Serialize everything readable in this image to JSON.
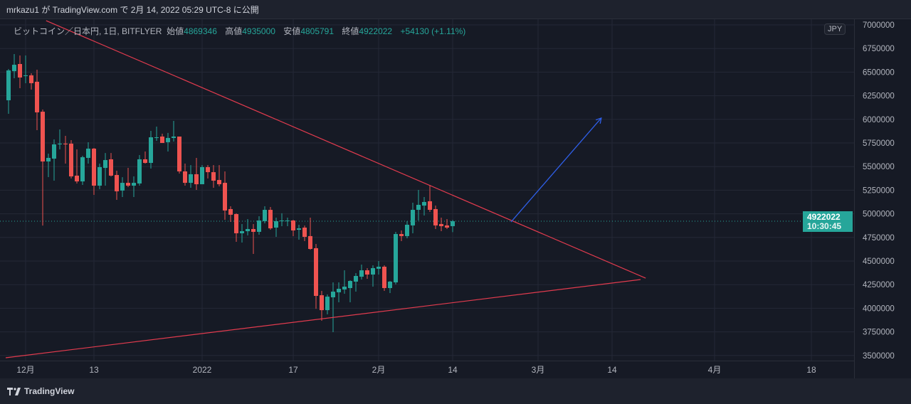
{
  "header": {
    "publish_text": "mrkazu1 が TradingView.com で 2月 14, 2022 05:29 UTC-8 に公開"
  },
  "legend": {
    "symbol": "ビットコイン／日本円, 1日, BITFLYER",
    "open_label": "始値",
    "open": "4869346",
    "high_label": "高値",
    "high": "4935000",
    "low_label": "安値",
    "low": "4805791",
    "close_label": "終値",
    "close": "4922022",
    "change": "+54130 (+1.11%)"
  },
  "currency_button": "JPY",
  "current_price": {
    "price": "4922022",
    "countdown": "10:30:45"
  },
  "footer": {
    "brand": "TradingView"
  },
  "colors": {
    "up": "#26a69a",
    "down": "#ef5350",
    "trendline": "#e23b4e",
    "arrow": "#2f5fe8",
    "grid": "#242836"
  },
  "chart_data": {
    "type": "candlestick",
    "interval": "1D",
    "start_date": "2021-11-28",
    "ylim": [
      3450000,
      7050000
    ],
    "y_ticks": [
      "7000000",
      "6750000",
      "6500000",
      "6250000",
      "6000000",
      "5750000",
      "5500000",
      "5250000",
      "5000000",
      "4750000",
      "4500000",
      "4250000",
      "4000000",
      "3750000",
      "3500000"
    ],
    "x_ticks": [
      {
        "day": 3,
        "label": "12月"
      },
      {
        "day": 15,
        "label": "13"
      },
      {
        "day": 34,
        "label": "2022"
      },
      {
        "day": 50,
        "label": "17"
      },
      {
        "day": 65,
        "label": "2月"
      },
      {
        "day": 78,
        "label": "14"
      },
      {
        "day": 93,
        "label": "3月"
      },
      {
        "day": 106,
        "label": "14"
      },
      {
        "day": 124,
        "label": "4月"
      },
      {
        "day": 141,
        "label": "18"
      }
    ],
    "ohlc": [
      [
        6202000,
        6533000,
        6059000,
        6518000
      ],
      [
        6510000,
        6691000,
        6435000,
        6578000
      ],
      [
        6586000,
        6676000,
        6330000,
        6443000
      ],
      [
        6458000,
        6676000,
        6383000,
        6466000
      ],
      [
        6466000,
        6488000,
        6315000,
        6383000
      ],
      [
        6398000,
        6526000,
        5886000,
        6074000
      ],
      [
        6081000,
        6104000,
        4876000,
        5554000
      ],
      [
        5554000,
        5637000,
        5389000,
        5592000
      ],
      [
        5584000,
        5788000,
        5351000,
        5735000
      ],
      [
        5735000,
        5893000,
        5682000,
        5743000
      ],
      [
        5743000,
        5825000,
        5532000,
        5735000
      ],
      [
        5743000,
        5780000,
        5374000,
        5396000
      ],
      [
        5404000,
        5682000,
        5321000,
        5343000
      ],
      [
        5343000,
        5614000,
        5306000,
        5599000
      ],
      [
        5592000,
        5758000,
        5532000,
        5690000
      ],
      [
        5690000,
        5697000,
        5200000,
        5298000
      ],
      [
        5298000,
        5532000,
        5261000,
        5494000
      ],
      [
        5486000,
        5644000,
        5298000,
        5569000
      ],
      [
        5577000,
        5644000,
        5395000,
        5404000
      ],
      [
        5411000,
        5456000,
        5148000,
        5238000
      ],
      [
        5246000,
        5388000,
        5178000,
        5328000
      ],
      [
        5328000,
        5486000,
        5283000,
        5298000
      ],
      [
        5298000,
        5396000,
        5178000,
        5328000
      ],
      [
        5321000,
        5622000,
        5298000,
        5577000
      ],
      [
        5577000,
        5660000,
        5532000,
        5539000
      ],
      [
        5539000,
        5878000,
        5479000,
        5810000
      ],
      [
        5803000,
        5923000,
        5773000,
        5810000
      ],
      [
        5818000,
        5848000,
        5750000,
        5750000
      ],
      [
        5758000,
        5856000,
        5660000,
        5803000
      ],
      [
        5803000,
        5983000,
        5765000,
        5818000
      ],
      [
        5818000,
        5818000,
        5426000,
        5449000
      ],
      [
        5449000,
        5532000,
        5298000,
        5328000
      ],
      [
        5328000,
        5516000,
        5276000,
        5419000
      ],
      [
        5419000,
        5592000,
        5253000,
        5313000
      ],
      [
        5313000,
        5516000,
        5313000,
        5494000
      ],
      [
        5494000,
        5516000,
        5374000,
        5441000
      ],
      [
        5441000,
        5516000,
        5276000,
        5351000
      ],
      [
        5358000,
        5516000,
        5291000,
        5313000
      ],
      [
        5328000,
        5449000,
        4937000,
        5035000
      ],
      [
        5050000,
        5080000,
        4914000,
        4990000
      ],
      [
        4997000,
        5005000,
        4703000,
        4794000
      ],
      [
        4794000,
        4892000,
        4696000,
        4816000
      ],
      [
        4816000,
        4944000,
        4771000,
        4839000
      ],
      [
        4839000,
        4892000,
        4575000,
        4809000
      ],
      [
        4809000,
        4974000,
        4779000,
        4929000
      ],
      [
        4922000,
        5080000,
        4899000,
        5042000
      ],
      [
        5042000,
        5072000,
        4831000,
        4846000
      ],
      [
        4854000,
        4959000,
        4756000,
        4922000
      ],
      [
        4922000,
        5005000,
        4869000,
        4929000
      ],
      [
        4922000,
        4959000,
        4869000,
        4929000
      ],
      [
        4929000,
        4937000,
        4764000,
        4824000
      ],
      [
        4831000,
        4884000,
        4726000,
        4846000
      ],
      [
        4854000,
        4876000,
        4711000,
        4756000
      ],
      [
        4764000,
        4959000,
        4620000,
        4628000
      ],
      [
        4636000,
        4681000,
        3995000,
        4131000
      ],
      [
        4138000,
        4184000,
        3867000,
        3980000
      ],
      [
        3980000,
        4146000,
        3935000,
        4123000
      ],
      [
        4116000,
        4274000,
        3747000,
        4176000
      ],
      [
        4169000,
        4274000,
        4063000,
        4206000
      ],
      [
        4199000,
        4402000,
        4154000,
        4229000
      ],
      [
        4214000,
        4297000,
        4063000,
        4289000
      ],
      [
        4282000,
        4372000,
        4176000,
        4342000
      ],
      [
        4334000,
        4462000,
        4304000,
        4402000
      ],
      [
        4402000,
        4425000,
        4312000,
        4357000
      ],
      [
        4357000,
        4455000,
        4229000,
        4425000
      ],
      [
        4418000,
        4500000,
        4357000,
        4440000
      ],
      [
        4440000,
        4455000,
        4184000,
        4214000
      ],
      [
        4214000,
        4289000,
        4161000,
        4282000
      ],
      [
        4274000,
        4809000,
        4252000,
        4786000
      ],
      [
        4786000,
        4824000,
        4711000,
        4764000
      ],
      [
        4764000,
        4922000,
        4741000,
        4884000
      ],
      [
        4877000,
        5117000,
        4794000,
        5042000
      ],
      [
        5042000,
        5253000,
        4929000,
        5095000
      ],
      [
        5087000,
        5178000,
        4982000,
        5125000
      ],
      [
        5133000,
        5306000,
        5020000,
        5042000
      ],
      [
        5050000,
        5087000,
        4839000,
        4877000
      ],
      [
        4892000,
        4959000,
        4816000,
        4869000
      ],
      [
        4877000,
        4944000,
        4839000,
        4854000
      ],
      [
        4869346,
        4935000,
        4805791,
        4922022
      ]
    ],
    "drawings": [
      {
        "type": "trendline",
        "from": {
          "day": 6.6,
          "price": 7045000
        },
        "to": {
          "day": 111.9,
          "price": 4319000
        }
      },
      {
        "type": "trendline",
        "from": {
          "day": -0.5,
          "price": 3476000
        },
        "to": {
          "day": 111,
          "price": 4304000
        }
      },
      {
        "type": "arrow",
        "from": {
          "day": 88.25,
          "price": 4914000
        },
        "to": {
          "day": 104.1,
          "price": 6014000
        }
      }
    ],
    "last_price": 4922022
  }
}
